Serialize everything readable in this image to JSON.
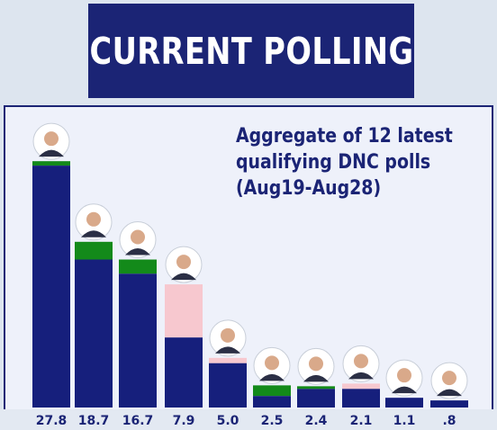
{
  "header": {
    "title": "CURRENT POLLING"
  },
  "chart_data": {
    "type": "bar",
    "title": "Aggregate of 12 latest qualifying DNC polls (Aug19-Aug28)",
    "title_lines": [
      "Aggregate of 12 latest",
      "qualifying DNC polls",
      "(Aug19-Aug28)"
    ],
    "categories": [
      "27.8",
      "18.7",
      "16.7",
      "7.9",
      "5.0",
      "2.5",
      "2.4",
      "2.1",
      "1.1",
      ".8"
    ],
    "values": [
      27.8,
      18.7,
      16.7,
      7.9,
      5.0,
      2.5,
      2.4,
      2.1,
      1.1,
      0.8
    ],
    "change_marks": [
      {
        "index": 0,
        "value": 0.5,
        "direction": "up",
        "color": "#138a1a"
      },
      {
        "index": 1,
        "value": 2.0,
        "direction": "up",
        "color": "#138a1a"
      },
      {
        "index": 2,
        "value": 1.6,
        "direction": "up",
        "color": "#138a1a"
      },
      {
        "index": 3,
        "value": 6.0,
        "direction": "down",
        "color": "#f7c8cf"
      },
      {
        "index": 4,
        "value": 0.6,
        "direction": "down",
        "color": "#f7c8cf"
      },
      {
        "index": 5,
        "value": 1.2,
        "direction": "up",
        "color": "#138a1a"
      },
      {
        "index": 6,
        "value": 0.3,
        "direction": "up",
        "color": "#138a1a"
      },
      {
        "index": 7,
        "value": 0.6,
        "direction": "down",
        "color": "#f7c8cf"
      }
    ],
    "bar_color": "#161f7c",
    "ylim": [
      0,
      30
    ],
    "grid": false
  },
  "colors": {
    "banner": "#1b2475",
    "bar": "#161f7c",
    "gain": "#138a1a",
    "loss": "#f7c8cf"
  }
}
